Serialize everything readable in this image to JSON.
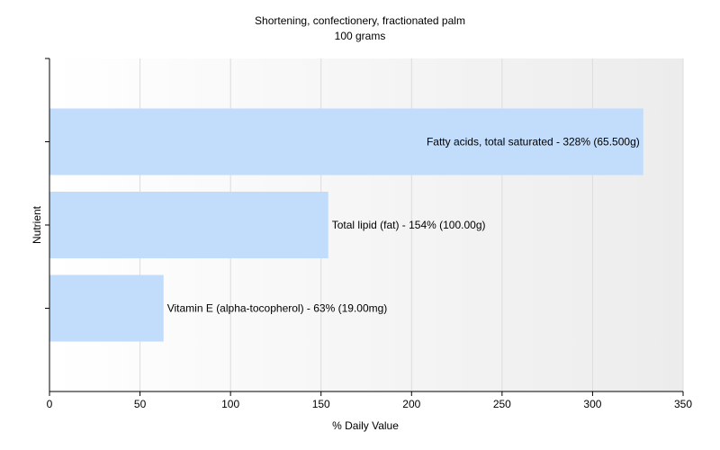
{
  "chart_data": {
    "type": "bar",
    "orientation": "horizontal",
    "title": "Shortening, confectionery, fractionated palm",
    "subtitle": "100 grams",
    "xlabel": "% Daily Value",
    "ylabel": "Nutrient",
    "xlim": [
      0,
      350
    ],
    "xticks": [
      0,
      50,
      100,
      150,
      200,
      250,
      300,
      350
    ],
    "grid": true,
    "legend": "none",
    "bar_color": "#c2dcfb",
    "bars": [
      {
        "label": "Fatty acids, total saturated - 328% (65.500g)",
        "value": 328
      },
      {
        "label": "Total lipid (fat) - 154% (100.00g)",
        "value": 154
      },
      {
        "label": "Vitamin E (alpha-tocopherol) - 63% (19.00mg)",
        "value": 63
      }
    ]
  }
}
